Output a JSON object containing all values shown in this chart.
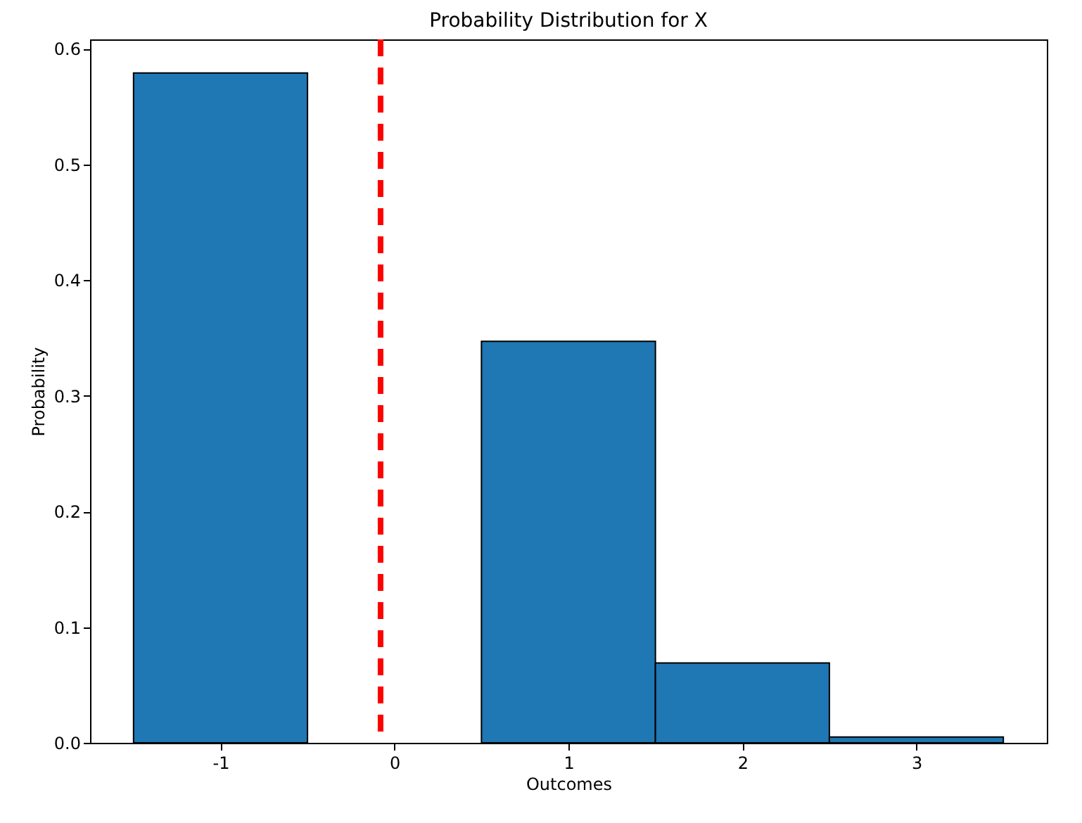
{
  "chart_data": {
    "type": "bar",
    "title": "Probability Distribution for X",
    "xlabel": "Outcomes",
    "ylabel": "Probability",
    "x": [
      -1,
      1,
      2,
      3
    ],
    "values": [
      0.579,
      0.347,
      0.069,
      0.005
    ],
    "color": "#1f77b4",
    "xlim": [
      -1.75,
      3.75
    ],
    "xticks": [
      -1,
      0,
      1,
      2,
      3
    ],
    "ylim": [
      0,
      0.608
    ],
    "yticks": [
      {
        "value": 0,
        "label": "0.0"
      },
      0.1,
      0.2,
      0.3,
      0.4,
      0.5,
      0.6
    ],
    "ref_lines": [
      {
        "axis": "x",
        "value": -0.08,
        "color": "#ff0000",
        "line_style": "dashed"
      }
    ]
  }
}
